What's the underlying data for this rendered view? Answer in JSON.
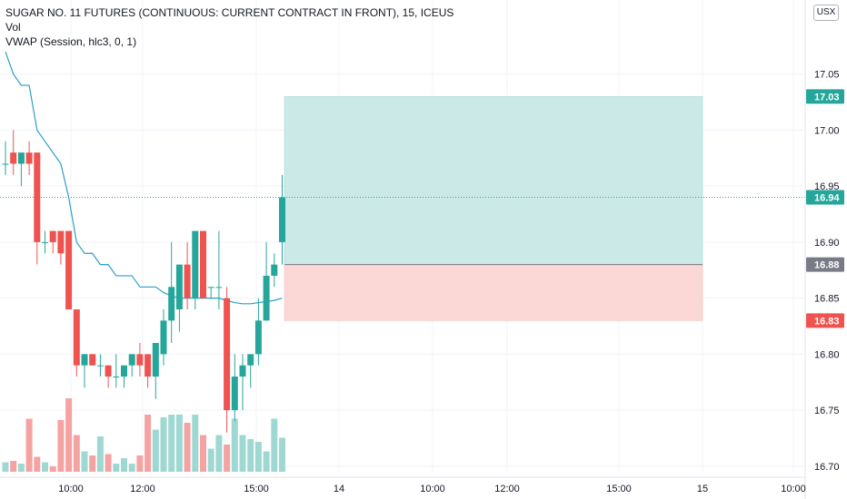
{
  "legend": {
    "symbol": "SUGAR NO. 11 FUTURES (CONTINUOUS: CURRENT CONTRACT IN FRONT), 15, ICEUS",
    "volume": "Vol",
    "vwap": "VWAP (Session, hlc3, 0, 1)"
  },
  "currency_label": "USX",
  "colors": {
    "up": "#26a69a",
    "down": "#ef5350",
    "vol_up": "#9fd8d2",
    "vol_down": "#f5a3a2",
    "vwap": "#2b9fc7",
    "profit_zone": "#cbe9e6",
    "loss_zone": "#fbd8d6",
    "entry_tag": "#787b86"
  },
  "chart_data": {
    "type": "candlestick",
    "interval_minutes": 15,
    "x_ticks": [
      "10:00",
      "12:00",
      "15:00",
      "14",
      "10:00",
      "12:00",
      "15:00",
      "15",
      "10:00"
    ],
    "y_ticks": [
      "16.70",
      "16.75",
      "16.80",
      "16.85",
      "16.90",
      "16.95",
      "17.00",
      "17.05"
    ],
    "ylim": [
      16.695,
      17.1
    ],
    "candles": [
      {
        "o": 16.97,
        "h": 16.99,
        "l": 16.96,
        "c": 16.97
      },
      {
        "o": 16.98,
        "h": 17.0,
        "l": 16.96,
        "c": 16.97
      },
      {
        "o": 16.97,
        "h": 16.98,
        "l": 16.95,
        "c": 16.98
      },
      {
        "o": 16.98,
        "h": 16.99,
        "l": 16.96,
        "c": 16.97
      },
      {
        "o": 16.98,
        "h": 16.98,
        "l": 16.88,
        "c": 16.9
      },
      {
        "o": 16.9,
        "h": 16.91,
        "l": 16.89,
        "c": 16.9
      },
      {
        "o": 16.91,
        "h": 16.91,
        "l": 16.89,
        "c": 16.9
      },
      {
        "o": 16.91,
        "h": 16.91,
        "l": 16.88,
        "c": 16.89
      },
      {
        "o": 16.91,
        "h": 16.91,
        "l": 16.84,
        "c": 16.84
      },
      {
        "o": 16.84,
        "h": 16.84,
        "l": 16.78,
        "c": 16.79
      },
      {
        "o": 16.79,
        "h": 16.8,
        "l": 16.77,
        "c": 16.8
      },
      {
        "o": 16.8,
        "h": 16.8,
        "l": 16.79,
        "c": 16.79
      },
      {
        "o": 16.79,
        "h": 16.8,
        "l": 16.78,
        "c": 16.79
      },
      {
        "o": 16.79,
        "h": 16.79,
        "l": 16.77,
        "c": 16.78
      },
      {
        "o": 16.78,
        "h": 16.8,
        "l": 16.77,
        "c": 16.78
      },
      {
        "o": 16.78,
        "h": 16.79,
        "l": 16.77,
        "c": 16.79
      },
      {
        "o": 16.79,
        "h": 16.8,
        "l": 16.78,
        "c": 16.8
      },
      {
        "o": 16.8,
        "h": 16.81,
        "l": 16.78,
        "c": 16.79
      },
      {
        "o": 16.8,
        "h": 16.8,
        "l": 16.77,
        "c": 16.78
      },
      {
        "o": 16.78,
        "h": 16.81,
        "l": 16.76,
        "c": 16.81
      },
      {
        "o": 16.8,
        "h": 16.84,
        "l": 16.79,
        "c": 16.83
      },
      {
        "o": 16.83,
        "h": 16.9,
        "l": 16.81,
        "c": 16.86
      },
      {
        "o": 16.84,
        "h": 16.88,
        "l": 16.82,
        "c": 16.88
      },
      {
        "o": 16.88,
        "h": 16.9,
        "l": 16.84,
        "c": 16.85
      },
      {
        "o": 16.85,
        "h": 16.91,
        "l": 16.84,
        "c": 16.91
      },
      {
        "o": 16.91,
        "h": 16.91,
        "l": 16.85,
        "c": 16.85
      },
      {
        "o": 16.86,
        "h": 16.86,
        "l": 16.85,
        "c": 16.86
      },
      {
        "o": 16.86,
        "h": 16.91,
        "l": 16.84,
        "c": 16.86
      },
      {
        "o": 16.85,
        "h": 16.86,
        "l": 16.73,
        "c": 16.75
      },
      {
        "o": 16.75,
        "h": 16.8,
        "l": 16.74,
        "c": 16.78
      },
      {
        "o": 16.78,
        "h": 16.8,
        "l": 16.75,
        "c": 16.79
      },
      {
        "o": 16.79,
        "h": 16.8,
        "l": 16.77,
        "c": 16.8
      },
      {
        "o": 16.8,
        "h": 16.85,
        "l": 16.79,
        "c": 16.83
      },
      {
        "o": 16.83,
        "h": 16.9,
        "l": 16.83,
        "c": 16.87
      },
      {
        "o": 16.87,
        "h": 16.89,
        "l": 16.86,
        "c": 16.88
      },
      {
        "o": 16.9,
        "h": 16.96,
        "l": 16.88,
        "c": 16.94
      }
    ],
    "volume_relative": [
      0.07,
      0.08,
      0.06,
      0.39,
      0.11,
      0.07,
      0.04,
      0.38,
      0.54,
      0.27,
      0.15,
      0.12,
      0.26,
      0.13,
      0.06,
      0.1,
      0.06,
      0.12,
      0.42,
      0.31,
      0.4,
      0.42,
      0.42,
      0.36,
      0.42,
      0.27,
      0.17,
      0.27,
      0.2,
      0.39,
      0.27,
      0.24,
      0.22,
      0.15,
      0.39,
      0.25
    ],
    "vwap": [
      17.07,
      17.05,
      17.04,
      17.04,
      17.0,
      16.99,
      16.98,
      16.97,
      16.94,
      16.9,
      16.89,
      16.89,
      16.88,
      16.88,
      16.87,
      16.87,
      16.87,
      16.86,
      16.86,
      16.86,
      16.855,
      16.852,
      16.85,
      16.85,
      16.85,
      16.85,
      16.85,
      16.85,
      16.848,
      16.846,
      16.845,
      16.845,
      16.846,
      16.847,
      16.848,
      16.85
    ],
    "position": {
      "target": 17.03,
      "entry": 16.88,
      "stop": 16.83
    },
    "last_price": 16.94,
    "price_labels": {
      "target": "17.03",
      "last": "16.94",
      "entry": "16.88",
      "stop": "16.83"
    }
  }
}
